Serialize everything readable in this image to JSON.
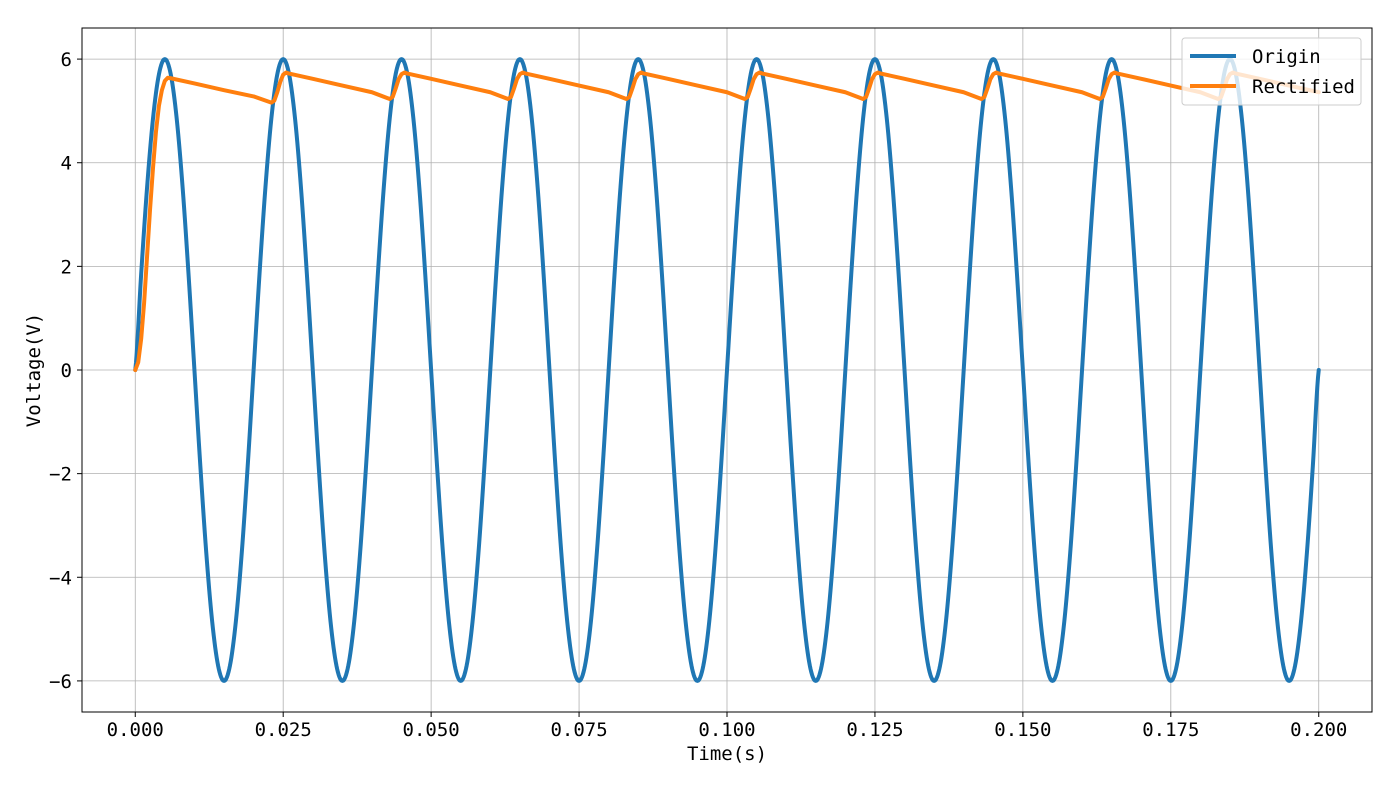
{
  "chart_data": {
    "type": "line",
    "title": "",
    "xlabel": "Time(s)",
    "ylabel": "Voltage(V)",
    "xlim": [
      -0.009,
      0.209
    ],
    "ylim": [
      -6.6,
      6.6
    ],
    "xticks": [
      0.0,
      0.025,
      0.05,
      0.075,
      0.1,
      0.125,
      0.15,
      0.175,
      0.2
    ],
    "xtick_labels": [
      "0.000",
      "0.025",
      "0.050",
      "0.075",
      "0.100",
      "0.125",
      "0.150",
      "0.175",
      "0.200"
    ],
    "yticks": [
      -6,
      -4,
      -2,
      0,
      2,
      4,
      6
    ],
    "ytick_labels": [
      "−6",
      "−4",
      "−2",
      "0",
      "2",
      "4",
      "6"
    ],
    "grid": true,
    "legend": "top-right",
    "series": [
      {
        "name": "Origin",
        "color": "#1f77b4",
        "x": [
          0.0,
          0.001,
          0.002,
          0.003,
          0.004,
          0.005,
          0.006,
          0.007,
          0.008,
          0.009,
          0.01,
          0.011,
          0.012,
          0.013,
          0.014,
          0.015,
          0.016,
          0.017,
          0.018,
          0.019,
          0.02,
          0.021,
          0.022,
          0.023,
          0.024,
          0.025,
          0.026,
          0.027,
          0.028,
          0.029,
          0.03,
          0.031,
          0.032,
          0.033,
          0.034,
          0.035,
          0.036,
          0.037,
          0.038,
          0.039,
          0.04,
          0.041,
          0.042,
          0.043,
          0.044,
          0.045,
          0.046,
          0.047,
          0.048,
          0.049,
          0.05,
          0.051,
          0.052,
          0.053,
          0.054,
          0.055,
          0.056,
          0.057,
          0.058,
          0.059,
          0.06,
          0.061,
          0.062,
          0.063,
          0.064,
          0.065,
          0.066,
          0.067,
          0.068,
          0.069,
          0.07,
          0.071,
          0.072,
          0.073,
          0.074,
          0.075,
          0.076,
          0.077,
          0.078,
          0.079,
          0.08,
          0.081,
          0.082,
          0.083,
          0.084,
          0.085,
          0.086,
          0.087,
          0.088,
          0.089,
          0.09,
          0.091,
          0.092,
          0.093,
          0.094,
          0.095,
          0.096,
          0.097,
          0.098,
          0.099,
          0.1,
          0.101,
          0.102,
          0.103,
          0.104,
          0.105,
          0.106,
          0.107,
          0.108,
          0.109,
          0.11,
          0.111,
          0.112,
          0.113,
          0.114,
          0.115,
          0.116,
          0.117,
          0.118,
          0.119,
          0.12,
          0.121,
          0.122,
          0.123,
          0.124,
          0.125,
          0.126,
          0.127,
          0.128,
          0.129,
          0.13,
          0.131,
          0.132,
          0.133,
          0.134,
          0.135,
          0.136,
          0.137,
          0.138,
          0.139,
          0.14,
          0.141,
          0.142,
          0.143,
          0.144,
          0.145,
          0.146,
          0.147,
          0.148,
          0.149,
          0.15,
          0.151,
          0.152,
          0.153,
          0.154,
          0.155,
          0.156,
          0.157,
          0.158,
          0.159,
          0.16,
          0.161,
          0.162,
          0.163,
          0.164,
          0.165,
          0.166,
          0.167,
          0.168,
          0.169,
          0.17,
          0.171,
          0.172,
          0.173,
          0.174,
          0.175,
          0.176,
          0.177,
          0.178,
          0.179,
          0.18,
          0.181,
          0.182,
          0.183,
          0.184,
          0.185,
          0.186,
          0.187,
          0.188,
          0.189,
          0.19,
          0.191,
          0.192,
          0.193,
          0.194,
          0.195,
          0.196,
          0.197,
          0.198,
          0.199,
          0.2
        ],
        "y": [
          0.0,
          1.854,
          3.527,
          4.854,
          5.706,
          6.0,
          5.706,
          4.854,
          3.527,
          1.854,
          0.0,
          -1.854,
          -3.527,
          -4.854,
          -5.706,
          -6.0,
          -5.706,
          -4.854,
          -3.527,
          -1.854,
          0.0,
          1.854,
          3.527,
          4.854,
          5.706,
          6.0,
          5.706,
          4.854,
          3.527,
          1.854,
          0.0,
          -1.854,
          -3.527,
          -4.854,
          -5.706,
          -6.0,
          -5.706,
          -4.854,
          -3.527,
          -1.854,
          0.0,
          1.854,
          3.527,
          4.854,
          5.706,
          6.0,
          5.706,
          4.854,
          3.527,
          1.854,
          0.0,
          -1.854,
          -3.527,
          -4.854,
          -5.706,
          -6.0,
          -5.706,
          -4.854,
          -3.527,
          -1.854,
          0.0,
          1.854,
          3.527,
          4.854,
          5.706,
          6.0,
          5.706,
          4.854,
          3.527,
          1.854,
          0.0,
          -1.854,
          -3.527,
          -4.854,
          -5.706,
          -6.0,
          -5.706,
          -4.854,
          -3.527,
          -1.854,
          0.0,
          1.854,
          3.527,
          4.854,
          5.706,
          6.0,
          5.706,
          4.854,
          3.527,
          1.854,
          0.0,
          -1.854,
          -3.527,
          -4.854,
          -5.706,
          -6.0,
          -5.706,
          -4.854,
          -3.527,
          -1.854,
          0.0,
          1.854,
          3.527,
          4.854,
          5.706,
          6.0,
          5.706,
          4.854,
          3.527,
          1.854,
          0.0,
          -1.854,
          -3.527,
          -4.854,
          -5.706,
          -6.0,
          -5.706,
          -4.854,
          -3.527,
          -1.854,
          0.0,
          1.854,
          3.527,
          4.854,
          5.706,
          6.0,
          5.706,
          4.854,
          3.527,
          1.854,
          0.0,
          -1.854,
          -3.527,
          -4.854,
          -5.706,
          -6.0,
          -5.706,
          -4.854,
          -3.527,
          -1.854,
          0.0,
          1.854,
          3.527,
          4.854,
          5.706,
          6.0,
          5.706,
          4.854,
          3.527,
          1.854,
          0.0,
          -1.854,
          -3.527,
          -4.854,
          -5.706,
          -6.0,
          -5.706,
          -4.854,
          -3.527,
          -1.854,
          0.0,
          1.854,
          3.527,
          4.854,
          5.706,
          6.0,
          5.706,
          4.854,
          3.527,
          1.854,
          0.0,
          -1.854,
          -3.527,
          -4.854,
          -5.706,
          -6.0,
          -5.706,
          -4.854,
          -3.527,
          -1.854,
          0.0,
          1.854,
          3.527,
          4.854,
          5.706,
          6.0,
          5.706,
          4.854,
          3.527,
          1.854,
          0.0,
          -1.854,
          -3.527,
          -4.854,
          -5.706,
          -6.0,
          -5.706,
          -4.854,
          -3.527,
          -1.854,
          0.0
        ]
      },
      {
        "name": "Rectified",
        "color": "#ff7f0e",
        "x": [
          0.0,
          0.0005,
          0.001,
          0.0015,
          0.002,
          0.0025,
          0.003,
          0.0035,
          0.004,
          0.0045,
          0.005,
          0.0055,
          0.006,
          0.01,
          0.015,
          0.02,
          0.023,
          0.0235,
          0.024,
          0.0245,
          0.025,
          0.0255,
          0.026,
          0.03,
          0.035,
          0.04,
          0.043,
          0.0435,
          0.044,
          0.0445,
          0.045,
          0.0455,
          0.046,
          0.05,
          0.055,
          0.06,
          0.063,
          0.0635,
          0.064,
          0.0645,
          0.065,
          0.0655,
          0.066,
          0.07,
          0.075,
          0.08,
          0.083,
          0.0835,
          0.084,
          0.0845,
          0.085,
          0.0855,
          0.086,
          0.09,
          0.095,
          0.1,
          0.103,
          0.1035,
          0.104,
          0.1045,
          0.105,
          0.1055,
          0.106,
          0.11,
          0.115,
          0.12,
          0.123,
          0.1235,
          0.124,
          0.1245,
          0.125,
          0.1255,
          0.126,
          0.13,
          0.135,
          0.14,
          0.143,
          0.1435,
          0.144,
          0.1445,
          0.145,
          0.1455,
          0.146,
          0.15,
          0.155,
          0.16,
          0.163,
          0.1635,
          0.164,
          0.1645,
          0.165,
          0.1655,
          0.166,
          0.17,
          0.175,
          0.18,
          0.183,
          0.1835,
          0.184,
          0.1845,
          0.185,
          0.1855,
          0.186,
          0.19,
          0.195,
          0.2
        ],
        "y": [
          0.0,
          0.15,
          0.6,
          1.3,
          2.2,
          3.1,
          3.9,
          4.6,
          5.1,
          5.4,
          5.58,
          5.64,
          5.63,
          5.53,
          5.4,
          5.28,
          5.16,
          5.2,
          5.36,
          5.56,
          5.7,
          5.74,
          5.72,
          5.62,
          5.49,
          5.36,
          5.23,
          5.27,
          5.43,
          5.61,
          5.71,
          5.74,
          5.72,
          5.62,
          5.49,
          5.36,
          5.23,
          5.27,
          5.43,
          5.61,
          5.71,
          5.74,
          5.72,
          5.62,
          5.49,
          5.36,
          5.23,
          5.27,
          5.43,
          5.61,
          5.71,
          5.74,
          5.72,
          5.62,
          5.49,
          5.36,
          5.23,
          5.27,
          5.43,
          5.61,
          5.71,
          5.74,
          5.72,
          5.62,
          5.49,
          5.36,
          5.23,
          5.27,
          5.43,
          5.61,
          5.71,
          5.74,
          5.72,
          5.62,
          5.49,
          5.36,
          5.23,
          5.27,
          5.43,
          5.61,
          5.71,
          5.74,
          5.72,
          5.62,
          5.49,
          5.36,
          5.23,
          5.27,
          5.43,
          5.61,
          5.71,
          5.74,
          5.72,
          5.62,
          5.49,
          5.36,
          5.23,
          5.27,
          5.43,
          5.61,
          5.71,
          5.74,
          5.72,
          5.62,
          5.49,
          5.36
        ]
      }
    ]
  }
}
